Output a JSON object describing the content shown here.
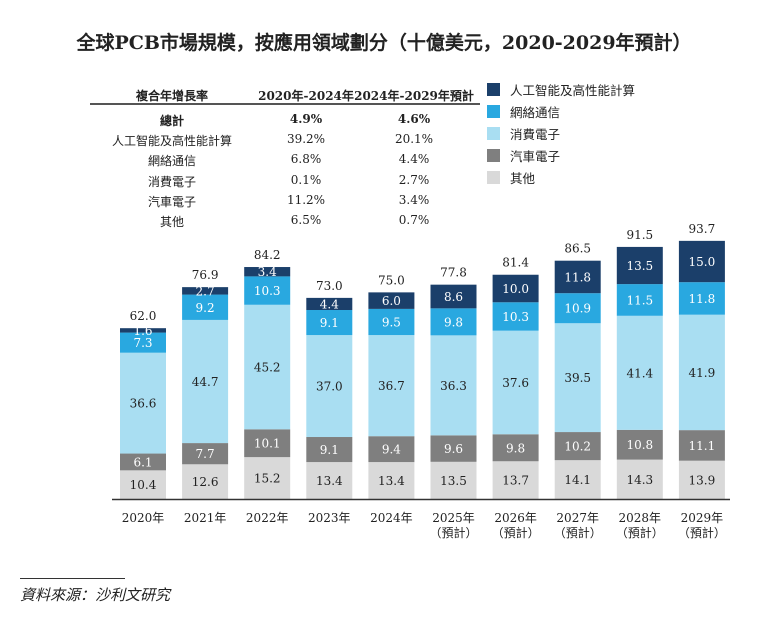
{
  "title": "全球PCB市場規模，按應用領域劃分（十億美元，2020-2029年預計）",
  "cagr_table": {
    "headers": [
      "複合年增長率",
      "2020年-2024年",
      "2024年-2029年預計"
    ],
    "rows": [
      [
        "總計",
        "4.9%",
        "4.6%"
      ],
      [
        "人工智能及高性能計算",
        "39.2%",
        "20.1%"
      ],
      [
        "網絡通信",
        "6.8%",
        "4.4%"
      ],
      [
        "消費電子",
        "0.1%",
        "2.7%"
      ],
      [
        "汽車電子",
        "11.2%",
        "3.4%"
      ],
      [
        "其他",
        "6.5%",
        "0.7%"
      ]
    ]
  },
  "source": "資料來源：沙利文研究",
  "chart_data": {
    "type": "bar",
    "stacked": true,
    "categories": [
      [
        "2020年"
      ],
      [
        "2021年"
      ],
      [
        "2022年"
      ],
      [
        "2023年"
      ],
      [
        "2024年"
      ],
      [
        "2025年",
        "（預計）"
      ],
      [
        "2026年",
        "（預計）"
      ],
      [
        "2027年",
        "（預計）"
      ],
      [
        "2028年",
        "（預計）"
      ],
      [
        "2029年",
        "（預計）"
      ]
    ],
    "totals": [
      "62.0",
      "76.9",
      "84.2",
      "73.0",
      "75.0",
      "77.8",
      "81.4",
      "86.5",
      "91.5",
      "93.7"
    ],
    "legend_placement": "top-right",
    "grid": false,
    "series": [
      {
        "name": "其他",
        "color": "#d9d9d9",
        "values": [
          10.4,
          12.6,
          15.2,
          13.4,
          13.4,
          13.5,
          13.7,
          14.1,
          14.3,
          13.9
        ]
      },
      {
        "name": "汽車電子",
        "color": "#7f7f7f",
        "values": [
          6.1,
          7.7,
          10.1,
          9.1,
          9.4,
          9.6,
          9.8,
          10.2,
          10.8,
          11.1
        ]
      },
      {
        "name": "消費電子",
        "color": "#a9def2",
        "values": [
          36.6,
          44.7,
          45.2,
          37.0,
          36.7,
          36.3,
          37.6,
          39.5,
          41.4,
          41.9
        ]
      },
      {
        "name": "網絡通信",
        "color": "#29a8e0",
        "values": [
          7.3,
          9.2,
          10.3,
          9.1,
          9.5,
          9.8,
          10.3,
          10.9,
          11.5,
          11.8
        ]
      },
      {
        "name": "人工智能及高性能計算",
        "color": "#1b3f6a",
        "values": [
          1.6,
          2.7,
          3.4,
          4.4,
          6.0,
          8.6,
          10.0,
          11.8,
          13.5,
          15.0
        ]
      }
    ]
  }
}
